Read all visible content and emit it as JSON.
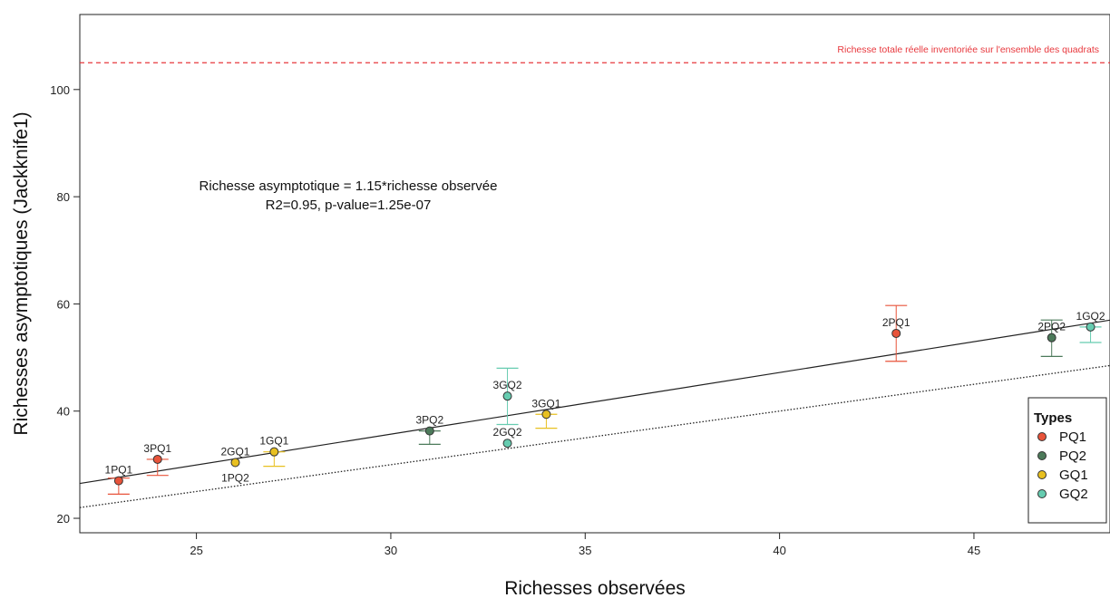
{
  "chart_data": {
    "type": "scatter",
    "xlabel": "Richesses observées",
    "ylabel": "Richesses asymptotiques (Jackknife1)",
    "xlim": [
      22,
      48.5
    ],
    "ylim": [
      17.3,
      114
    ],
    "xticks": [
      25,
      30,
      35,
      40,
      45
    ],
    "yticks": [
      20,
      40,
      60,
      80,
      100
    ],
    "grid": false,
    "annotation": [
      "Richesse asymptotique = 1.15*richesse observée",
      "R2=0.95, p-value=1.25e-07"
    ],
    "reference_line": {
      "y": 105,
      "label": "Richesse totale réelle inventoriée sur l'ensemble des quadrats",
      "color": "#e8383d",
      "style": "dashed"
    },
    "fit_line": {
      "slope": 1.15,
      "intercept": 1.2,
      "style": "solid",
      "color": "#222222"
    },
    "identity_line": {
      "slope": 1.0,
      "intercept": 0,
      "style": "dotted",
      "color": "#222222"
    },
    "legend": {
      "title": "Types",
      "position": "bottom-right"
    },
    "series": [
      {
        "name": "PQ1",
        "color": "#e8533a",
        "points": [
          {
            "label": "1PQ1",
            "x": 23,
            "y": 27.0,
            "err_lo": 24.5,
            "err_hi": 27.5,
            "label_pos": "above"
          },
          {
            "label": "3PQ1",
            "x": 24,
            "y": 31.0,
            "err_lo": 28.0,
            "err_hi": 31.0,
            "label_pos": "above"
          },
          {
            "label": "2PQ1",
            "x": 43,
            "y": 54.5,
            "err_lo": 49.3,
            "err_hi": 59.7,
            "label_pos": "above"
          }
        ]
      },
      {
        "name": "PQ2",
        "color": "#4c7a5a",
        "points": [
          {
            "label": "3PQ2",
            "x": 31,
            "y": 36.3,
            "err_lo": 33.8,
            "err_hi": 36.3,
            "label_pos": "above"
          },
          {
            "label": "2PQ2",
            "x": 47,
            "y": 53.7,
            "err_lo": 50.2,
            "err_hi": 57.0,
            "label_pos": "above"
          }
        ]
      },
      {
        "name": "GQ1",
        "color": "#e8c020",
        "points": [
          {
            "label": "2GQ1",
            "x": 26,
            "y": 30.4,
            "err_lo": 30.4,
            "err_hi": 30.4,
            "label_pos": "above"
          },
          {
            "label": "1PQ2",
            "x": 26,
            "y": 30.4,
            "err_lo": 30.4,
            "err_hi": 30.4,
            "label_pos": "below",
            "label_only": true
          },
          {
            "label": "1GQ1",
            "x": 27,
            "y": 32.4,
            "err_lo": 29.7,
            "err_hi": 32.4,
            "label_pos": "above"
          },
          {
            "label": "3GQ1",
            "x": 34,
            "y": 39.4,
            "err_lo": 36.8,
            "err_hi": 39.4,
            "label_pos": "above"
          }
        ]
      },
      {
        "name": "GQ2",
        "color": "#66ccb0",
        "points": [
          {
            "label": "3GQ2",
            "x": 33,
            "y": 42.8,
            "err_lo": 37.5,
            "err_hi": 48.0,
            "label_pos": "above"
          },
          {
            "label": "2GQ2",
            "x": 33,
            "y": 34.0,
            "err_lo": 34.0,
            "err_hi": 34.0,
            "label_pos": "above"
          },
          {
            "label": "1GQ2",
            "x": 48,
            "y": 55.7,
            "err_lo": 52.8,
            "err_hi": 55.7,
            "label_pos": "above"
          }
        ]
      }
    ]
  }
}
